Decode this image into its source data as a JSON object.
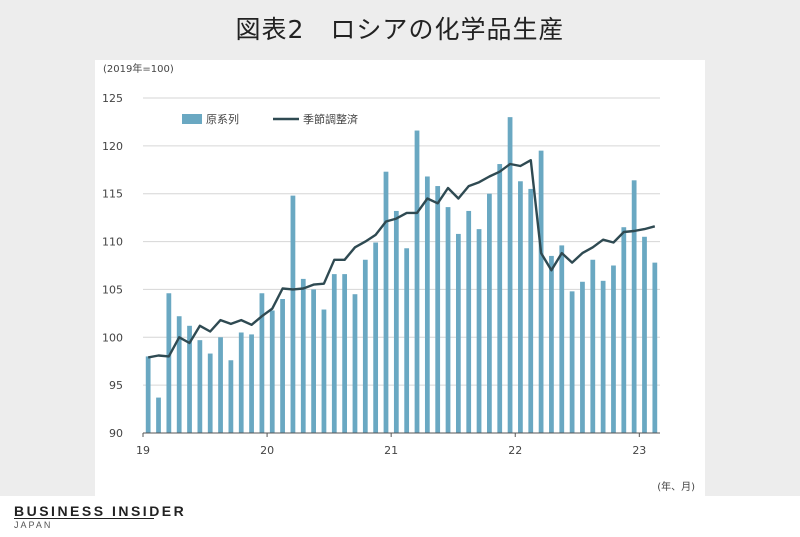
{
  "title": "図表2　ロシアの化学品生産",
  "brand": {
    "name": "BUSINESS INSIDER",
    "sub": "JAPAN"
  },
  "chart_data": {
    "type": "bar+line",
    "unit_label": "(2019年=100)",
    "x_unit_label": "(年、月)",
    "ylim": [
      90,
      125
    ],
    "yticks": [
      90,
      95,
      100,
      105,
      110,
      115,
      120,
      125
    ],
    "xtick_labels": [
      {
        "label": "19",
        "index": 0
      },
      {
        "label": "20",
        "index": 12
      },
      {
        "label": "21",
        "index": 24
      },
      {
        "label": "22",
        "index": 36
      },
      {
        "label": "23",
        "index": 48
      }
    ],
    "grid": "horizontal",
    "legend_position": "top-left",
    "colors": {
      "bar": "#6aa8c2",
      "line": "#2f4a52",
      "grid": "#d6d6d6"
    },
    "series": [
      {
        "name": "原系列",
        "kind": "bar",
        "values": [
          98.0,
          93.7,
          104.6,
          102.2,
          101.2,
          99.7,
          98.3,
          100.0,
          97.6,
          100.5,
          100.3,
          104.6,
          102.8,
          104.0,
          114.8,
          106.1,
          105.0,
          102.9,
          106.6,
          106.6,
          104.5,
          108.1,
          109.9,
          117.3,
          113.2,
          109.3,
          121.6,
          116.8,
          115.8,
          113.6,
          110.8,
          113.2,
          111.3,
          115.0,
          118.1,
          123.0,
          116.3,
          115.5,
          119.5,
          108.5,
          109.6,
          104.8,
          105.8,
          108.1,
          105.9,
          107.5,
          111.5,
          116.4,
          110.5,
          107.8
        ]
      },
      {
        "name": "季節調整済",
        "kind": "line",
        "values": [
          97.9,
          98.1,
          98.0,
          100.0,
          99.4,
          101.2,
          100.6,
          101.8,
          101.4,
          101.8,
          101.3,
          102.2,
          103.0,
          105.1,
          105.0,
          105.1,
          105.5,
          105.6,
          108.1,
          108.1,
          109.4,
          110.0,
          110.7,
          112.1,
          112.4,
          113.0,
          113.0,
          114.5,
          114.0,
          115.6,
          114.5,
          115.8,
          116.2,
          116.8,
          117.3,
          118.1,
          117.9,
          118.5,
          108.8,
          107.0,
          108.8,
          107.8,
          108.8,
          109.4,
          110.2,
          109.9,
          111.0,
          111.1,
          111.3,
          111.6
        ]
      }
    ]
  }
}
